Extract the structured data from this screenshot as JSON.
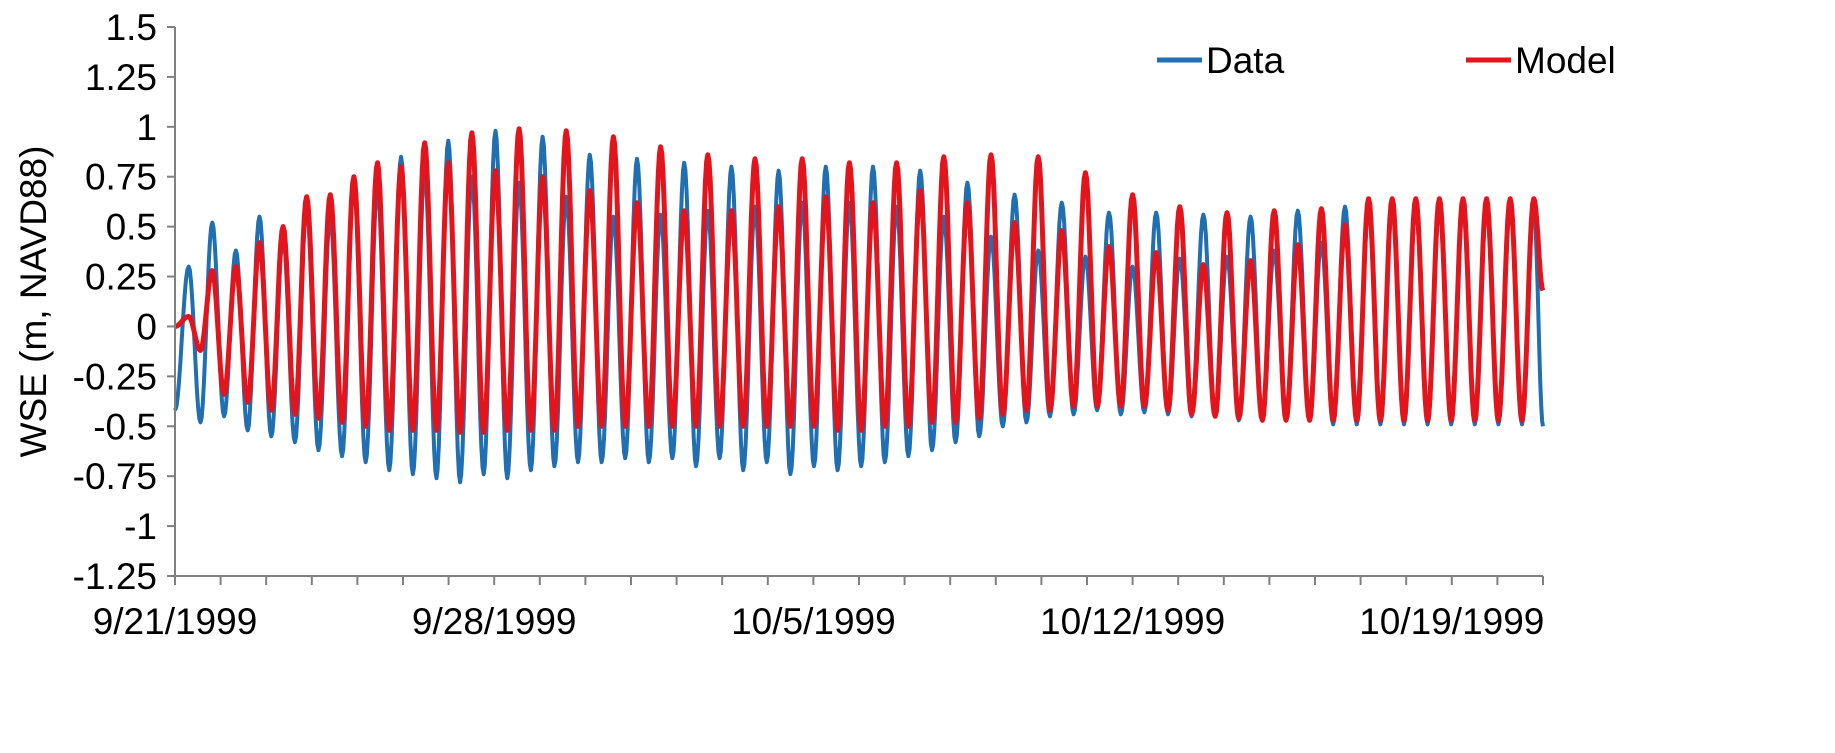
{
  "chart_data": {
    "type": "line",
    "ylabel": "WSE (m, NAVD88)",
    "xlabel": "",
    "ylim": [
      -1.25,
      1.5
    ],
    "yticks": [
      1.5,
      1.25,
      1,
      0.75,
      0.5,
      0.25,
      0,
      -0.25,
      -0.5,
      -0.75,
      -1,
      -1.25
    ],
    "ytick_labels": [
      "1.5",
      "1.25",
      "1",
      "0.75",
      "0.5",
      "0.25",
      "0",
      "-0.25",
      "-0.5",
      "-0.75",
      "-1",
      "-1.25"
    ],
    "xlim": [
      "1999-09-21",
      "1999-10-21"
    ],
    "xticks": [
      "1999-09-21",
      "1999-09-28",
      "1999-10-05",
      "1999-10-12",
      "1999-10-19"
    ],
    "xtick_labels": [
      "9/21/1999",
      "9/28/1999",
      "10/5/1999",
      "10/12/1999",
      "10/19/1999"
    ],
    "minor_x_tick_interval_days": 1,
    "grid": false,
    "legend_position": "top-right",
    "series": [
      {
        "name": "Data",
        "color": "#1f6fb2",
        "description": "semidiurnal tidal signal",
        "peaks": [
          0.3,
          0.52,
          0.38,
          0.55,
          0.45,
          0.6,
          0.55,
          0.72,
          0.7,
          0.85,
          0.78,
          0.93,
          0.75,
          0.98,
          0.72,
          0.95,
          0.65,
          0.86,
          0.55,
          0.84,
          0.56,
          0.82,
          0.58,
          0.8,
          0.6,
          0.78,
          0.62,
          0.8,
          0.62,
          0.8,
          0.6,
          0.78,
          0.55,
          0.72,
          0.45,
          0.66,
          0.38,
          0.62,
          0.35,
          0.57,
          0.3,
          0.57,
          0.34,
          0.56,
          0.35,
          0.55,
          0.38,
          0.58,
          0.42,
          0.6
        ],
        "troughs": [
          -0.48,
          -0.45,
          -0.52,
          -0.55,
          -0.58,
          -0.62,
          -0.65,
          -0.68,
          -0.72,
          -0.74,
          -0.76,
          -0.78,
          -0.74,
          -0.76,
          -0.72,
          -0.7,
          -0.68,
          -0.68,
          -0.66,
          -0.68,
          -0.66,
          -0.7,
          -0.66,
          -0.72,
          -0.68,
          -0.74,
          -0.7,
          -0.72,
          -0.7,
          -0.68,
          -0.65,
          -0.62,
          -0.58,
          -0.55,
          -0.5,
          -0.48,
          -0.45,
          -0.44,
          -0.42,
          -0.44,
          -0.43,
          -0.44,
          -0.45,
          -0.45,
          -0.47,
          -0.47,
          -0.46,
          -0.47,
          -0.49
        ],
        "start_value": -0.42,
        "end_value": -0.5
      },
      {
        "name": "Model",
        "color": "#e3141b",
        "description": "model tidal signal with spin-up from 0 at start",
        "peaks": [
          0.05,
          0.28,
          0.3,
          0.42,
          0.5,
          0.65,
          0.66,
          0.75,
          0.82,
          0.8,
          0.92,
          0.82,
          0.97,
          0.78,
          0.99,
          0.75,
          0.98,
          0.68,
          0.95,
          0.62,
          0.9,
          0.58,
          0.86,
          0.58,
          0.84,
          0.6,
          0.84,
          0.65,
          0.82,
          0.62,
          0.82,
          0.68,
          0.85,
          0.62,
          0.86,
          0.52,
          0.85,
          0.48,
          0.77,
          0.4,
          0.66,
          0.37,
          0.6,
          0.31,
          0.57,
          0.33,
          0.58,
          0.41,
          0.59,
          0.51,
          0.64
        ],
        "troughs": [
          -0.12,
          -0.34,
          -0.38,
          -0.42,
          -0.44,
          -0.46,
          -0.48,
          -0.5,
          -0.52,
          -0.52,
          -0.52,
          -0.53,
          -0.53,
          -0.52,
          -0.52,
          -0.52,
          -0.5,
          -0.5,
          -0.5,
          -0.5,
          -0.5,
          -0.5,
          -0.5,
          -0.5,
          -0.5,
          -0.5,
          -0.5,
          -0.52,
          -0.52,
          -0.5,
          -0.5,
          -0.48,
          -0.48,
          -0.46,
          -0.44,
          -0.42,
          -0.42,
          -0.4,
          -0.4,
          -0.4,
          -0.4,
          -0.42,
          -0.44,
          -0.45,
          -0.46,
          -0.47,
          -0.47,
          -0.47
        ],
        "start_value": 0.0,
        "end_value": 0.18
      }
    ]
  }
}
